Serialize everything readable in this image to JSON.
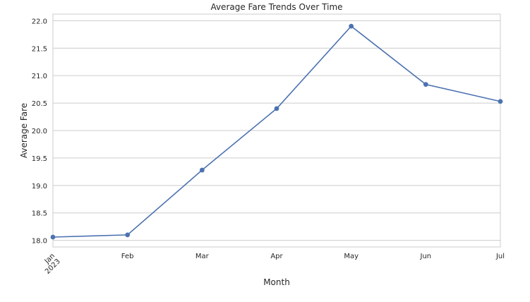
{
  "chart_data": {
    "type": "line",
    "title": "Average Fare Trends Over Time",
    "xlabel": "Month",
    "ylabel": "Average Fare",
    "x": [
      "Jan\n2023",
      "Feb",
      "Mar",
      "Apr",
      "May",
      "Jun",
      "Jul"
    ],
    "series": [
      {
        "values": [
          18.06,
          18.1,
          19.28,
          20.4,
          21.9,
          20.84,
          20.53
        ]
      }
    ],
    "ylim": [
      17.88,
      22.12
    ],
    "yticks": [
      18.0,
      18.5,
      19.0,
      19.5,
      20.0,
      20.5,
      21.0,
      21.5,
      22.0
    ],
    "ytick_labels": [
      "18.0",
      "18.5",
      "19.0",
      "19.5",
      "20.0",
      "20.5",
      "21.0",
      "21.5",
      "22.0"
    ],
    "grid": "horizontal",
    "line_color": "#4c72b0",
    "grid_color": "#cccccc",
    "spine_color": "#cccccc"
  }
}
